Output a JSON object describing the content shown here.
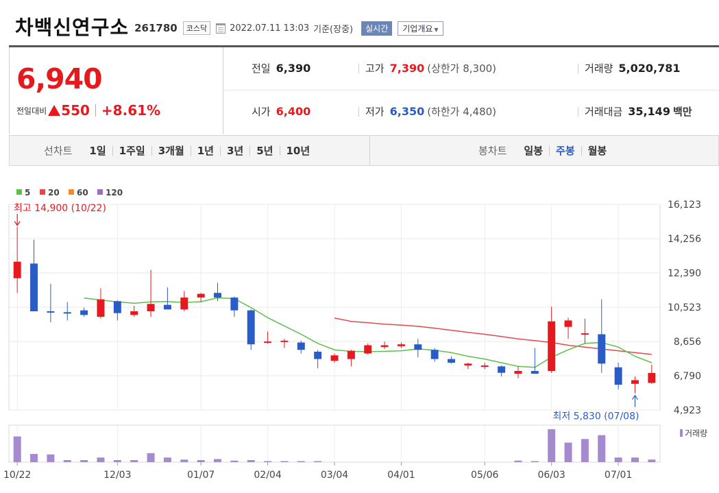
{
  "header": {
    "company_name": "차백신연구소",
    "stock_code": "261780",
    "market": "코스닥",
    "date_text": "2022.07.11 13:03",
    "basis_text": "기준(장중)",
    "realtime_label": "실시간",
    "overview_label": "기업개요"
  },
  "quote": {
    "current_price": "6,940",
    "change_label": "전일대비",
    "change_value": "550",
    "change_percent": "+8.61%",
    "prev_close_label": "전일",
    "prev_close": "6,390",
    "high_label": "고가",
    "high": "7,390",
    "upper_limit_text": "(상한가 8,300)",
    "volume_label": "거래량",
    "volume": "5,020,781",
    "open_label": "시가",
    "open": "6,400",
    "low_label": "저가",
    "low": "6,350",
    "lower_limit_text": "(하한가 4,480)",
    "trade_value_label": "거래대금",
    "trade_value": "35,149",
    "trade_value_unit": "백만"
  },
  "colors": {
    "up": "#e5191e",
    "down": "#2a5cc8",
    "ma5": "#5cbf4a",
    "ma20": "#e8474a",
    "ma60": "#f28b28",
    "ma120": "#9e6bc6",
    "volume_bar": "#a58ad0"
  },
  "toolbar": {
    "line_chart_label": "선차트",
    "periods": [
      "1일",
      "1주일",
      "3개월",
      "1년",
      "3년",
      "5년",
      "10년"
    ],
    "candle_chart_label": "봉차트",
    "candle_types": [
      "일봉",
      "주봉",
      "월봉"
    ],
    "active_candle_type": "주봉"
  },
  "chart_data": {
    "type": "candlestick",
    "interval": "weekly",
    "legend": [
      "5",
      "20",
      "60",
      "120"
    ],
    "y_ticks": [
      4923,
      6790,
      8656,
      10523,
      12390,
      14256,
      16123
    ],
    "y_tick_labels": [
      "4,923",
      "6,790",
      "8,656",
      "10,523",
      "12,390",
      "14,256",
      "16,123"
    ],
    "ylim": [
      4923,
      16123
    ],
    "x_tick_labels": [
      "10/22",
      "12/03",
      "01/07",
      "02/04",
      "03/04",
      "04/01",
      "05/06",
      "06/03",
      "07/01"
    ],
    "x_tick_index": [
      0,
      6,
      11,
      15,
      19,
      23,
      28,
      32,
      36
    ],
    "high_annotation": "최고 14,900 (10/22)",
    "low_annotation": "최저 5,830 (07/08)",
    "volume_label": "거래량",
    "candles": [
      {
        "o": 12100,
        "h": 14900,
        "l": 11300,
        "c": 13000
      },
      {
        "o": 12900,
        "h": 14200,
        "l": 10300,
        "c": 10300
      },
      {
        "o": 10300,
        "h": 11800,
        "l": 9700,
        "c": 10250
      },
      {
        "o": 10250,
        "h": 10800,
        "l": 9800,
        "c": 10200
      },
      {
        "o": 10350,
        "h": 10500,
        "l": 10000,
        "c": 10100
      },
      {
        "o": 10000,
        "h": 11550,
        "l": 9900,
        "c": 10950
      },
      {
        "o": 10850,
        "h": 10900,
        "l": 9800,
        "c": 10200
      },
      {
        "o": 10100,
        "h": 10600,
        "l": 10000,
        "c": 10300
      },
      {
        "o": 10300,
        "h": 12550,
        "l": 10000,
        "c": 10700
      },
      {
        "o": 10650,
        "h": 11600,
        "l": 10400,
        "c": 10400
      },
      {
        "o": 10400,
        "h": 11400,
        "l": 10300,
        "c": 11050
      },
      {
        "o": 11050,
        "h": 11300,
        "l": 10800,
        "c": 11250
      },
      {
        "o": 11300,
        "h": 11850,
        "l": 10850,
        "c": 11050
      },
      {
        "o": 11050,
        "h": 11100,
        "l": 10000,
        "c": 10350
      },
      {
        "o": 10350,
        "h": 10400,
        "l": 8200,
        "c": 8500
      },
      {
        "o": 8600,
        "h": 9200,
        "l": 8550,
        "c": 8650
      },
      {
        "o": 8650,
        "h": 8800,
        "l": 8300,
        "c": 8700
      },
      {
        "o": 8600,
        "h": 8700,
        "l": 8000,
        "c": 8200
      },
      {
        "o": 8100,
        "h": 8200,
        "l": 7200,
        "c": 7700
      },
      {
        "o": 7600,
        "h": 8000,
        "l": 7500,
        "c": 7900
      },
      {
        "o": 7700,
        "h": 8200,
        "l": 7300,
        "c": 8150
      },
      {
        "o": 8000,
        "h": 8550,
        "l": 7950,
        "c": 8450
      },
      {
        "o": 8350,
        "h": 8650,
        "l": 8250,
        "c": 8450
      },
      {
        "o": 8400,
        "h": 8600,
        "l": 8300,
        "c": 8500
      },
      {
        "o": 8500,
        "h": 8800,
        "l": 7800,
        "c": 8200
      },
      {
        "o": 8200,
        "h": 8300,
        "l": 7550,
        "c": 7700
      },
      {
        "o": 7700,
        "h": 7850,
        "l": 7450,
        "c": 7500
      },
      {
        "o": 7350,
        "h": 7500,
        "l": 7150,
        "c": 7450
      },
      {
        "o": 7300,
        "h": 7500,
        "l": 7150,
        "c": 7350
      },
      {
        "o": 7300,
        "h": 7350,
        "l": 6750,
        "c": 6950
      },
      {
        "o": 6900,
        "h": 7300,
        "l": 6650,
        "c": 7050
      },
      {
        "o": 7050,
        "h": 8300,
        "l": 6900,
        "c": 6900
      },
      {
        "o": 7050,
        "h": 10550,
        "l": 6950,
        "c": 9750
      },
      {
        "o": 9450,
        "h": 9950,
        "l": 8800,
        "c": 9800
      },
      {
        "o": 9100,
        "h": 9900,
        "l": 8550,
        "c": 9100
      },
      {
        "o": 9050,
        "h": 10950,
        "l": 6950,
        "c": 7450
      },
      {
        "o": 7250,
        "h": 7500,
        "l": 6050,
        "c": 6300
      },
      {
        "o": 6350,
        "h": 6750,
        "l": 5830,
        "c": 6550
      },
      {
        "o": 6400,
        "h": 7390,
        "l": 6350,
        "c": 6940
      }
    ],
    "ma5": [
      null,
      null,
      null,
      null,
      11025,
      10910,
      10810,
      10740,
      10810,
      10830,
      10780,
      10820,
      11030,
      10990,
      10500,
      9950,
      9500,
      9050,
      8550,
      8200,
      8120,
      8100,
      8120,
      8150,
      8250,
      8180,
      8050,
      7850,
      7700,
      7500,
      7300,
      7250,
      7800,
      8200,
      8550,
      8600,
      8350,
      7850,
      7500
    ],
    "ma20": [
      null,
      null,
      null,
      null,
      null,
      null,
      null,
      null,
      null,
      null,
      null,
      null,
      null,
      null,
      null,
      null,
      null,
      null,
      null,
      9930,
      9750,
      9680,
      9600,
      9550,
      9480,
      9380,
      9270,
      9150,
      9050,
      8930,
      8800,
      8700,
      8600,
      8450,
      8350,
      8250,
      8150,
      8050,
      7950
    ],
    "volume": [
      100,
      32,
      30,
      8,
      8,
      18,
      8,
      8,
      35,
      18,
      10,
      8,
      12,
      6,
      8,
      4,
      4,
      4,
      4,
      0,
      0,
      0,
      0,
      0,
      0,
      0,
      0,
      0,
      0,
      0,
      6,
      4,
      128,
      76,
      90,
      105,
      18,
      18,
      10
    ]
  }
}
